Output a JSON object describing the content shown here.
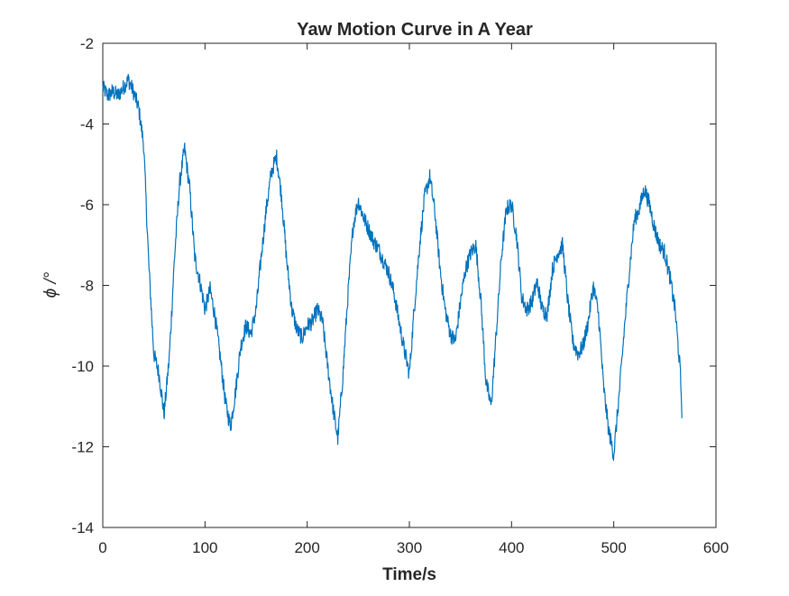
{
  "chart_data": {
    "type": "line",
    "title": "Yaw Motion Curve in A Year",
    "xlabel": "Time/s",
    "ylabel": "ϕ /°",
    "xlim": [
      0,
      600
    ],
    "ylim": [
      -14,
      -2
    ],
    "xticks": [
      0,
      100,
      200,
      300,
      400,
      500,
      600
    ],
    "yticks": [
      -2,
      -4,
      -6,
      -8,
      -10,
      -12,
      -14
    ],
    "xtick_labels": [
      "0",
      "100",
      "200",
      "300",
      "400",
      "500",
      "600"
    ],
    "ytick_labels": [
      "-2",
      "-4",
      "-6",
      "-8",
      "-10",
      "-12",
      "-14"
    ],
    "grid": false,
    "color": "#0072BD",
    "series": [
      {
        "x": [
          0,
          5,
          10,
          15,
          20,
          25,
          30,
          35,
          40,
          45,
          50,
          55,
          60,
          65,
          70,
          75,
          80,
          85,
          90,
          95,
          100,
          105,
          110,
          115,
          120,
          125,
          130,
          135,
          140,
          145,
          150,
          155,
          160,
          165,
          170,
          175,
          180,
          185,
          190,
          195,
          200,
          205,
          210,
          215,
          220,
          225,
          230,
          235,
          240,
          245,
          250,
          255,
          260,
          265,
          270,
          275,
          280,
          285,
          290,
          295,
          300,
          305,
          310,
          315,
          320,
          325,
          330,
          335,
          340,
          345,
          350,
          355,
          360,
          365,
          370,
          375,
          380,
          385,
          390,
          395,
          400,
          405,
          410,
          415,
          420,
          425,
          430,
          435,
          440,
          445,
          450,
          455,
          460,
          465,
          470,
          475,
          480,
          485,
          490,
          495,
          500,
          505,
          510,
          515,
          520,
          525,
          530,
          535,
          540,
          545,
          550,
          555,
          560,
          565,
          567
        ],
        "values": [
          -3.1,
          -3.3,
          -3.2,
          -3.3,
          -3.1,
          -2.9,
          -3.2,
          -3.6,
          -4.5,
          -7.5,
          -9.7,
          -10.2,
          -11.2,
          -9.8,
          -7.4,
          -5.5,
          -4.6,
          -5.6,
          -7.3,
          -7.9,
          -8.6,
          -8.1,
          -8.8,
          -9.8,
          -10.9,
          -11.5,
          -10.6,
          -9.5,
          -9.0,
          -9.2,
          -8.6,
          -7.3,
          -6.1,
          -5.2,
          -4.8,
          -5.8,
          -7.4,
          -8.6,
          -9.1,
          -9.3,
          -9.0,
          -8.9,
          -8.6,
          -8.9,
          -10.0,
          -11.0,
          -11.8,
          -10.2,
          -8.2,
          -6.5,
          -5.9,
          -6.3,
          -6.6,
          -6.9,
          -7.1,
          -7.4,
          -7.7,
          -8.2,
          -8.9,
          -9.6,
          -10.2,
          -8.5,
          -7.0,
          -5.8,
          -5.3,
          -6.2,
          -7.6,
          -8.6,
          -9.2,
          -9.4,
          -8.4,
          -7.6,
          -7.2,
          -7.0,
          -8.4,
          -10.4,
          -11.0,
          -9.2,
          -7.3,
          -6.1,
          -6.0,
          -6.8,
          -8.3,
          -8.6,
          -8.4,
          -7.9,
          -8.6,
          -8.7,
          -7.6,
          -7.2,
          -7.0,
          -8.4,
          -9.4,
          -9.7,
          -9.5,
          -8.9,
          -8.0,
          -8.7,
          -10.5,
          -11.6,
          -12.2,
          -10.8,
          -9.2,
          -7.7,
          -6.4,
          -6.1,
          -5.6,
          -6.0,
          -6.6,
          -7.0,
          -7.2,
          -7.8,
          -8.6,
          -10.1,
          -11.3
        ]
      }
    ]
  }
}
